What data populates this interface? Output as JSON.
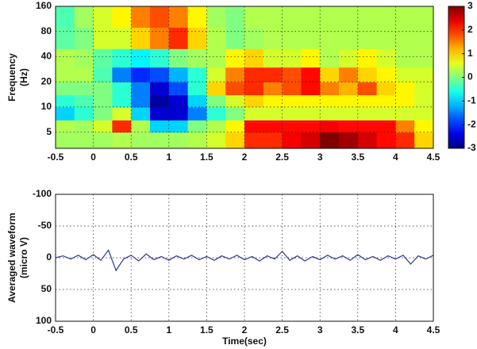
{
  "chart_data": [
    {
      "type": "heatmap",
      "ylabel": [
        "Frequency",
        "(Hz)"
      ],
      "ylog": true,
      "colormap": "jet",
      "xlim": [
        -0.5,
        4.5
      ],
      "xticks": [
        -0.5,
        0,
        0.5,
        1,
        1.5,
        2,
        2.5,
        3,
        3.5,
        4,
        4.5
      ],
      "ylim": [
        3.2,
        160
      ],
      "yticks": [
        5,
        10,
        20,
        40,
        80,
        160
      ],
      "grid": true,
      "xbins": [
        -0.5,
        -0.25,
        0,
        0.25,
        0.5,
        0.75,
        1,
        1.25,
        1.5,
        1.75,
        2,
        2.25,
        2.5,
        2.75,
        3,
        3.25,
        3.5,
        3.75,
        4,
        4.25,
        4.5
      ],
      "ybins": [
        3.2,
        5,
        7,
        10,
        14,
        20,
        30,
        50,
        90,
        160
      ],
      "z": [
        [
          0.2,
          0.2,
          0.2,
          0.3,
          0.2,
          0.2,
          0.2,
          0.3,
          0.5,
          1,
          2,
          2,
          2.3,
          2.5,
          3,
          2.8,
          2.5,
          2.2,
          2,
          1
        ],
        [
          0.3,
          0.2,
          0.5,
          2,
          0.3,
          -1,
          -1,
          0,
          0.3,
          0.8,
          2.2,
          2.2,
          2.2,
          2.2,
          2.3,
          2.2,
          2.2,
          2.2,
          1.5,
          0.8
        ],
        [
          -1,
          -0.5,
          0,
          0.5,
          -1,
          -2.5,
          -2.5,
          -1.5,
          -0.5,
          0,
          0.5,
          0.5,
          0.5,
          0.5,
          0.5,
          0.5,
          0.5,
          0.5,
          0.5,
          0.5
        ],
        [
          -0.5,
          -0.3,
          0,
          -0.5,
          -1.5,
          -2.8,
          -2.5,
          -1,
          0,
          0.5,
          1,
          0.8,
          0.8,
          0.8,
          0.8,
          0.8,
          0.8,
          0.8,
          0.8,
          0.5
        ],
        [
          0,
          0,
          0,
          -0.5,
          -1.5,
          -2.5,
          -1.8,
          -0.5,
          1,
          1.8,
          2,
          1.5,
          1.8,
          2.2,
          1.5,
          1.2,
          1.8,
          1,
          0.8,
          0.5
        ],
        [
          0.3,
          0.3,
          -0.3,
          -1.5,
          -2,
          -1.8,
          -1.2,
          -0.5,
          0.5,
          1.5,
          2,
          2,
          1.8,
          2.2,
          1,
          1.5,
          1,
          0.8,
          0.5,
          0.5
        ],
        [
          0.3,
          0.2,
          -0.2,
          -0.5,
          -0.8,
          -0.5,
          0,
          0.2,
          0.3,
          0.8,
          1,
          0.5,
          0.5,
          0.8,
          0.3,
          0.5,
          0.8,
          0.5,
          0.3,
          0.3
        ],
        [
          -0.2,
          0,
          0.5,
          0.5,
          1,
          1.5,
          2,
          1,
          0.3,
          0,
          0.2,
          0.3,
          0.3,
          0.3,
          0.3,
          0.3,
          0.3,
          0.3,
          0.3,
          0.3
        ],
        [
          -0.3,
          0.2,
          0.5,
          0.8,
          1.5,
          1.8,
          1.5,
          0.8,
          0.2,
          0,
          0.3,
          0.3,
          0.3,
          0.3,
          0.3,
          0.3,
          0.3,
          0.3,
          0.3,
          0.3
        ]
      ],
      "clim": [
        -3,
        3
      ],
      "cticks": [
        -3,
        -2,
        -1,
        0,
        1,
        2,
        3
      ]
    },
    {
      "type": "line",
      "xlabel": "Time(sec)",
      "ylabel": [
        "Averaged waveform",
        "(micro V)"
      ],
      "xlim": [
        -0.5,
        4.5
      ],
      "xticks": [
        -0.5,
        0,
        0.5,
        1,
        1.5,
        2,
        2.5,
        3,
        3.5,
        4,
        4.5
      ],
      "ylim": [
        -100,
        100
      ],
      "yreverse": true,
      "yticks": [
        -100,
        -50,
        0,
        50,
        100
      ],
      "grid": true,
      "x": [
        -0.5,
        -0.4,
        -0.3,
        -0.2,
        -0.1,
        0,
        0.1,
        0.2,
        0.3,
        0.4,
        0.5,
        0.6,
        0.7,
        0.8,
        0.9,
        1,
        1.1,
        1.2,
        1.3,
        1.4,
        1.5,
        1.6,
        1.7,
        1.8,
        1.9,
        2,
        2.1,
        2.2,
        2.3,
        2.4,
        2.5,
        2.6,
        2.7,
        2.8,
        2.9,
        3,
        3.1,
        3.2,
        3.3,
        3.4,
        3.5,
        3.6,
        3.7,
        3.8,
        3.9,
        4,
        4.1,
        4.2,
        4.3,
        4.4,
        4.5
      ],
      "series": [
        {
          "color": "#2b3a9a",
          "values": [
            0,
            -3,
            2,
            -4,
            3,
            -5,
            4,
            -12,
            20,
            2,
            -4,
            5,
            -6,
            3,
            -2,
            4,
            -3,
            2,
            -4,
            3,
            -2,
            4,
            -3,
            2,
            -4,
            3,
            -2,
            5,
            -3,
            2,
            -10,
            4,
            -3,
            5,
            -2,
            3,
            -4,
            2,
            -3,
            4,
            -5,
            3,
            -2,
            4,
            -3,
            2,
            -4,
            10,
            -3,
            2,
            -4
          ]
        }
      ]
    }
  ]
}
